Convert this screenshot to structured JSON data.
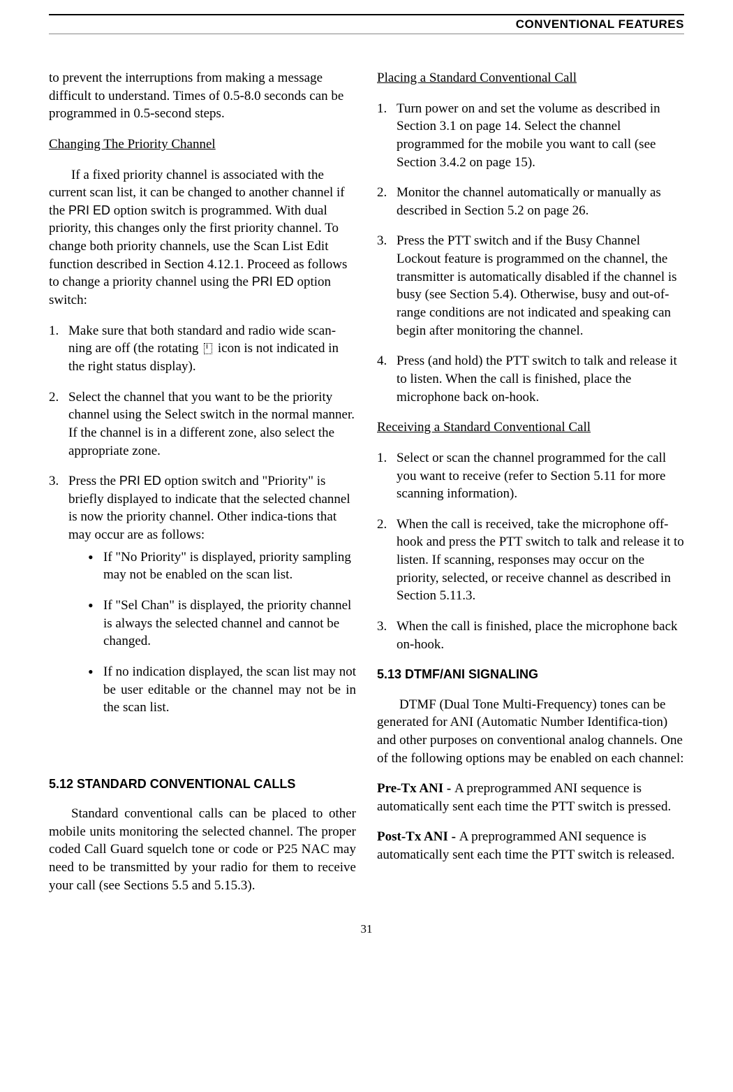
{
  "header": {
    "title": "CONVENTIONAL FEATURES"
  },
  "left": {
    "p1": "to prevent the interruptions from making a message difficult to understand. Times of 0.5-8.0 seconds can be programmed in 0.5-second steps.",
    "h1": "Changing The Priority Channel",
    "p2a": "If a fixed priority channel is associated with the current scan list, it can be changed to another channel if the ",
    "p2_pried1": "PRI ED",
    "p2b": " option switch is programmed. With dual priority, this changes only the first priority channel. To change both priority channels, use the Scan List Edit function described in Section 4.12.1. Proceed as follows to change a priority channel using the ",
    "p2_pried2": "PRI ED",
    "p2c": " option switch:",
    "li1a": "Make sure that both standard and radio wide scan-ning are off (the rotating ",
    "li1b": " icon is not indicated in the right status display).",
    "li2": "Select the channel that you want to be the priority channel using the Select switch in the normal manner. If the channel is in a different zone, also select the appropriate zone.",
    "li3a": "Press the ",
    "li3_pried": "PRI ED",
    "li3b": " option switch and \"Priority\" is briefly displayed to indicate that the selected channel is now the priority channel. Other indica-tions that may occur are as follows:",
    "b1": "If \"No Priority\" is displayed, priority sampling may not be enabled on the scan list.",
    "b2": "If \"Sel Chan\" is displayed, the priority channel is always the selected channel and cannot be changed.",
    "b3": "If no indication displayed, the scan list may not be user editable or the channel may not be in the scan list.",
    "h2": "5.12 STANDARD CONVENTIONAL CALLS",
    "p3": "Standard conventional calls can be placed to other mobile units monitoring the selected channel. The proper coded Call Guard squelch tone or code or P25 NAC may need to be transmitted by your radio for them to receive your call (see Sections 5.5 and 5.15.3)."
  },
  "right": {
    "h1": "Placing a Standard Conventional Call",
    "p1": "Turn power on and set the volume as described in Section 3.1 on page 14. Select the channel programmed for the mobile you want to call (see Section 3.4.2 on page 15).",
    "p2": "Monitor the channel automatically or manually as described in Section 5.2 on page 26.",
    "p3": "Press the PTT switch and if the Busy Channel Lockout feature is programmed on the channel, the transmitter is automatically disabled if the channel is busy (see Section 5.4). Otherwise, busy and out-of-range conditions are not indicated and speaking can begin after monitoring the channel.",
    "p4": "Press (and hold) the PTT switch to talk and release it to listen. When the call is finished, place the microphone back on-hook.",
    "h2": "Receiving a Standard Conventional Call",
    "r1": "Select or scan the channel programmed for the call you want to receive (refer to Section 5.11 for more scanning information).",
    "r2": "When the call is received, take the microphone off-hook and press the PTT switch to talk and release it to listen. If scanning, responses may occur on the priority, selected, or receive channel as described in Section 5.11.3.",
    "r3": "When the call is finished, place the microphone back on-hook.",
    "h3": "5.13 DTMF/ANI SIGNALING",
    "p5": "DTMF (Dual Tone Multi-Frequency) tones can be generated for ANI (Automatic Number Identifica-tion) and other purposes on conventional analog channels. One of the following options may be enabled on each channel:",
    "pre_lbl": "Pre-Tx ANI - ",
    "pre_txt": "A preprogrammed ANI sequence is automatically sent each time the PTT switch is pressed.",
    "post_lbl": "Post-Tx ANI - ",
    "post_txt": "A preprogrammed ANI sequence is automatically sent each time the PTT switch is released."
  },
  "footer": {
    "page": "31"
  },
  "nums": {
    "n1": "1.",
    "n2": "2.",
    "n3": "3.",
    "n4": "4."
  }
}
